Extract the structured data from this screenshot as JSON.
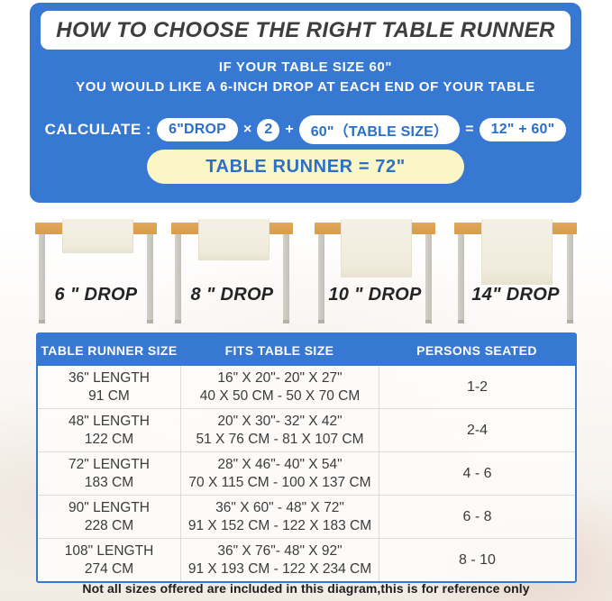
{
  "header": {
    "title": "HOW TO CHOOSE THE RIGHT TABLE RUNNER"
  },
  "intro": {
    "line1": "IF YOUR TABLE SIZE 60\"",
    "line2": "YOU WOULD LIKE A 6-INCH DROP AT EACH END OF YOUR TABLE"
  },
  "calculation": {
    "label": "CALCULATE :",
    "drop_pill": "6\"DROP",
    "times": "×",
    "multiplier": "2",
    "plus": "+",
    "table_size_pill": "60\"（TABLE SIZE）",
    "equals": "=",
    "result_pill": "12\" + 60\"",
    "final": "TABLE RUNNER = 72\""
  },
  "drops": [
    "6 \" DROP",
    "8 \" DROP",
    "10 \" DROP",
    "14\" DROP"
  ],
  "size_table": {
    "headers": [
      "TABLE RUNNER SIZE",
      "FITS TABLE SIZE",
      "PERSONS SEATED"
    ],
    "rows": [
      {
        "size1": "36\" LENGTH",
        "size2": "91 CM",
        "fits1": "16\" X 20\"- 20\" X 27\"",
        "fits2": "40 X 50 CM - 50 X 70 CM",
        "persons": "1-2"
      },
      {
        "size1": "48\" LENGTH",
        "size2": "122 CM",
        "fits1": "20\" X 30\"- 32\" X 42\"",
        "fits2": "51 X 76 CM - 81 X 107 CM",
        "persons": "2-4"
      },
      {
        "size1": "72\" LENGTH",
        "size2": "183 CM",
        "fits1": "28\" X 46\"- 40\" X 54\"",
        "fits2": "70 X 115 CM - 100 X 137 CM",
        "persons": "4 - 6"
      },
      {
        "size1": "90\" LENGTH",
        "size2": "228 CM",
        "fits1": "36\" X 60\" - 48\" X 72\"",
        "fits2": "91 X 152 CM - 122 X 183 CM",
        "persons": "6 - 8"
      },
      {
        "size1": "108\" LENGTH",
        "size2": "274 CM",
        "fits1": "36\" X 76\"- 48\" X 92\"",
        "fits2": "91 X 193 CM - 122 X 234 CM",
        "persons": "8 - 10"
      }
    ]
  },
  "footer": {
    "note": "Not all sizes offered are included in this diagram,this is for reference only"
  },
  "colors": {
    "accent_blue": "#3778D3",
    "pill_text_blue": "#2B6FC8",
    "result_yellow": "#FBF6C5",
    "wood": "#DCA356",
    "runner_cream": "#F1EDE0"
  }
}
